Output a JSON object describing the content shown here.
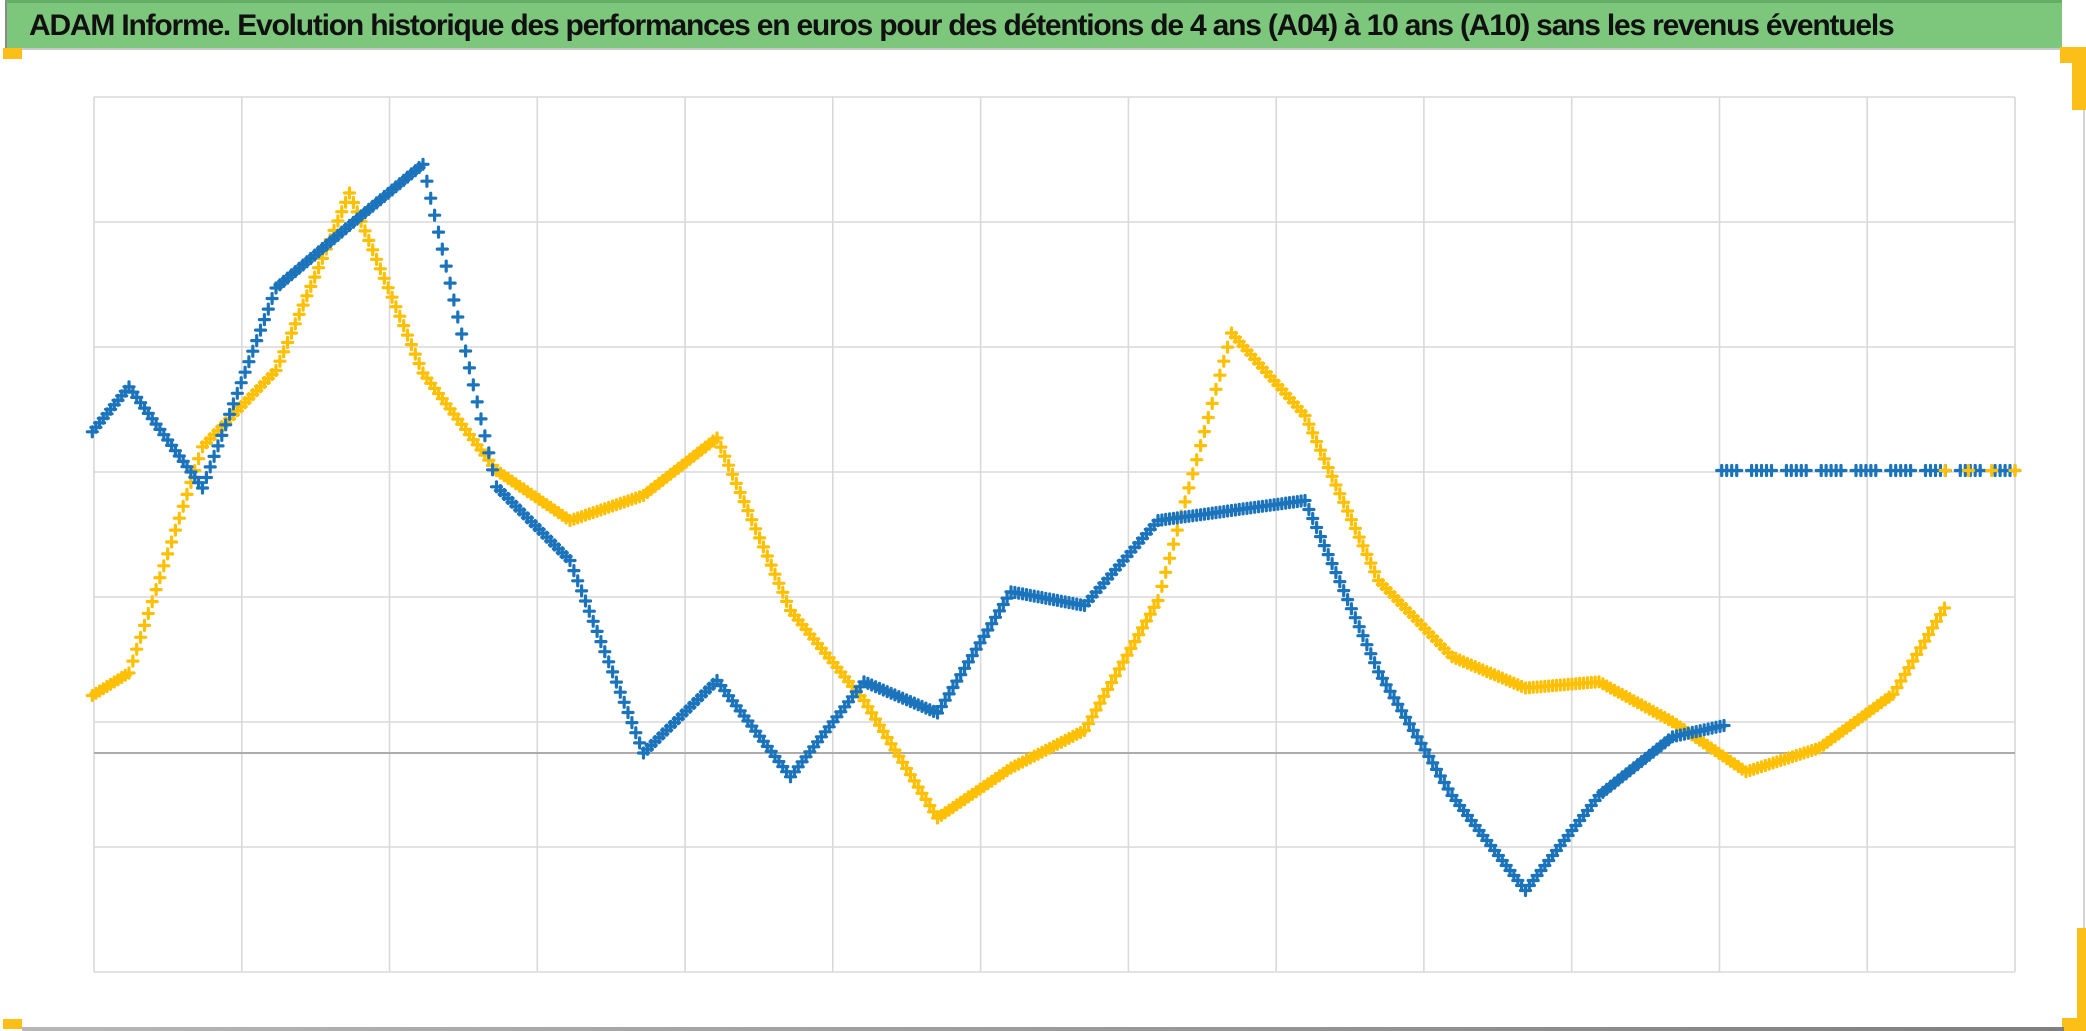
{
  "header": {
    "title": "ADAM Informe. Evolution historique des performances en euros pour des détentions de 4 ans (A04) à 10 ans (A10) sans les revenus éventuels"
  },
  "colors": {
    "header_bg": "#7CC77C",
    "header_top_edge": "#66AE66",
    "header_text": "#111111",
    "series_blue": "#1B74BB",
    "series_yellow": "#FFC003",
    "gridline": "#D9D9D9",
    "axis_baseline": "#ACACAC",
    "decoration_yellow": "#FBBF17",
    "bottom_bar_gray": "#8F8F8F"
  },
  "chart_data": {
    "type": "line",
    "title": "ADAM Informe. Evolution historique des performances en euros pour des détentions de 4 ans (A04) à 10 ans (A10) sans les revenus éventuels",
    "xlabel": "",
    "ylabel": "",
    "axis_tick_labels_visible": false,
    "legend": "none",
    "grid": {
      "vertical_lines": 14,
      "horizontal_lines": 8,
      "dark_baseline_units": 0,
      "ylim_units": [
        -1.75,
        5.25
      ]
    },
    "note": "No numeric axis labels are visible; y values are in gridline units relative to the darker horizontal baseline (0). x is the data-point index (one vertex per ~half gridline).",
    "marker": "plus-cross",
    "series": [
      {
        "id": "yellow-main",
        "name": "yellow-series",
        "color": "#FFC003",
        "points": [
          [
            -0.5,
            0.46
          ],
          [
            0,
            0.64
          ],
          [
            1,
            2.45
          ],
          [
            2,
            3.06
          ],
          [
            3,
            4.48
          ],
          [
            4,
            3.04
          ],
          [
            5,
            2.26
          ],
          [
            6,
            1.86
          ],
          [
            7,
            2.06
          ],
          [
            8,
            2.52
          ],
          [
            9,
            1.14
          ],
          [
            10,
            0.42
          ],
          [
            11,
            -0.52
          ],
          [
            12,
            -0.12
          ],
          [
            13,
            0.18
          ],
          [
            14,
            1.22
          ],
          [
            15,
            3.36
          ],
          [
            16,
            2.7
          ],
          [
            17,
            1.38
          ],
          [
            18,
            0.77
          ],
          [
            19,
            0.52
          ],
          [
            20,
            0.57
          ],
          [
            21,
            0.25
          ],
          [
            22,
            -0.15
          ],
          [
            23,
            0.04
          ],
          [
            24,
            0.47
          ],
          [
            24.7,
            1.16
          ]
        ]
      },
      {
        "id": "blue-main",
        "name": "blue-series",
        "color": "#1B74BB",
        "points": [
          [
            -0.5,
            2.57
          ],
          [
            0,
            2.93
          ],
          [
            1,
            2.12
          ],
          [
            2,
            3.72
          ],
          [
            3,
            4.22
          ],
          [
            4,
            4.71
          ],
          [
            5,
            2.13
          ],
          [
            6,
            1.54
          ],
          [
            7,
            0.0
          ],
          [
            8,
            0.58
          ],
          [
            9,
            -0.19
          ],
          [
            10,
            0.57
          ],
          [
            11,
            0.32
          ],
          [
            12,
            1.29
          ],
          [
            13,
            1.18
          ],
          [
            14,
            1.86
          ],
          [
            15,
            1.94
          ],
          [
            16,
            2.02
          ],
          [
            17,
            0.65
          ],
          [
            18,
            -0.34
          ],
          [
            19,
            -1.1
          ],
          [
            20,
            -0.34
          ],
          [
            21,
            0.13
          ],
          [
            21.7,
            0.22
          ]
        ]
      },
      {
        "id": "blue-flat",
        "name": "blue-flat-segment",
        "color": "#1B74BB",
        "style": "dashed",
        "points": [
          [
            21.67,
            2.26
          ],
          [
            25.66,
            2.26
          ]
        ]
      },
      {
        "id": "yellow-flat",
        "name": "yellow-flat-segment",
        "color": "#FFC003",
        "style": "sparse",
        "points": [
          [
            24.71,
            2.26
          ],
          [
            25.66,
            2.26
          ]
        ]
      }
    ]
  },
  "decorations": {
    "top_left_tick": true,
    "top_right_corner": true,
    "bottom_right_corner": true,
    "bottom_left_tick": true
  }
}
